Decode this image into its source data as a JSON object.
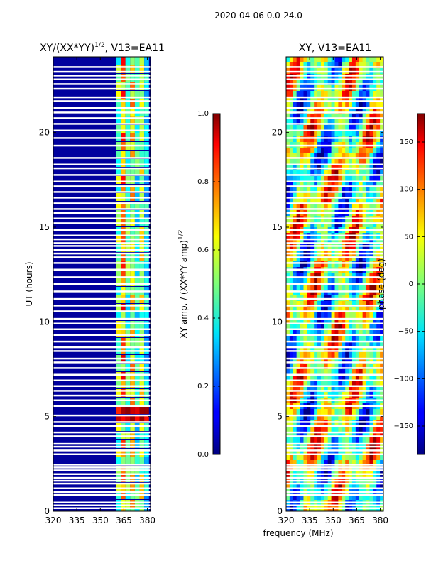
{
  "figure": {
    "suptitle": "2020-04-06 0.0-24.0",
    "shared_xlabel": "frequency (MHz)"
  },
  "chart_data": [
    {
      "type": "heatmap",
      "title": "XY/(XX*YY)",
      "title_exponent": "1/2",
      "title_suffix": ", V13=EA11",
      "xlabel": "",
      "ylabel": "UT (hours)",
      "xlim": [
        320,
        382
      ],
      "ylim": [
        0,
        24
      ],
      "xticks": [
        320,
        335,
        350,
        365,
        380
      ],
      "yticks": [
        0,
        5,
        10,
        15,
        20
      ],
      "colormap": "jet",
      "background_value": 0.03,
      "band_frequencies": [
        {
          "start": 360,
          "end": 363,
          "value": 0.5
        },
        {
          "start": 363,
          "end": 366,
          "value": 0.7
        },
        {
          "start": 366,
          "end": 369,
          "value": 0.45
        },
        {
          "start": 369,
          "end": 372,
          "value": 0.62
        },
        {
          "start": 372,
          "end": 375,
          "value": 0.4
        },
        {
          "start": 375,
          "end": 378,
          "value": 0.55
        },
        {
          "start": 378,
          "end": 381,
          "value": 0.35
        }
      ],
      "colorbar": {
        "label": "XY amp. / (XX*YY amp)",
        "label_exponent": "1/2",
        "range": [
          0.0,
          1.0
        ],
        "ticks": [
          "0.0",
          "0.2",
          "0.4",
          "0.6",
          "0.8",
          "1.0"
        ],
        "tick_values": [
          0.0,
          0.2,
          0.4,
          0.6,
          0.8,
          1.0
        ]
      }
    },
    {
      "type": "heatmap",
      "title": "XY, V13=EA11",
      "xlabel": "frequency (MHz)",
      "ylabel": "",
      "xlim": [
        320,
        382
      ],
      "ylim": [
        0,
        24
      ],
      "xticks": [
        320,
        335,
        350,
        365,
        380
      ],
      "yticks": [
        0,
        5,
        10,
        15,
        20
      ],
      "colormap": "jet",
      "colorbar": {
        "label": "phase (deg)",
        "range": [
          -180,
          180
        ],
        "ticks": [
          "−150",
          "−100",
          "−50",
          "0",
          "50",
          "100",
          "150"
        ],
        "tick_values": [
          -150,
          -100,
          -50,
          0,
          50,
          100,
          150
        ]
      }
    }
  ],
  "flagged_hours": [
    0.15,
    0.3,
    0.45,
    0.85,
    1.0,
    1.2,
    1.45,
    1.6,
    1.75,
    1.95,
    2.15,
    2.3,
    2.45,
    3.0,
    3.2,
    3.4,
    3.55,
    3.95,
    4.15,
    4.5,
    4.7,
    5.05,
    5.55,
    5.85,
    6.1,
    6.35,
    6.6,
    6.9,
    7.2,
    7.55,
    7.85,
    8.05,
    8.45,
    8.65,
    8.95,
    9.3,
    9.6,
    9.9,
    10.15,
    10.55,
    10.85,
    11.2,
    11.6,
    12.0,
    12.35,
    12.75,
    13.1,
    13.4,
    13.6,
    13.8,
    14.0,
    14.15,
    14.35,
    14.55,
    14.85,
    15.2,
    15.45,
    15.75,
    15.95,
    16.25,
    16.55,
    16.85,
    17.15,
    17.4,
    17.75,
    18.1,
    18.3,
    18.65,
    19.3,
    19.7,
    20.1,
    20.45,
    20.75,
    21.05,
    21.3,
    21.65,
    21.85,
    22.3,
    22.55,
    22.8,
    23.0,
    23.2,
    23.45
  ]
}
